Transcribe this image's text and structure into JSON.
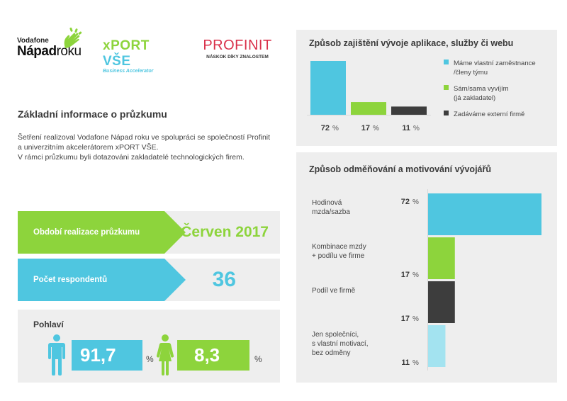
{
  "logos": {
    "vodafone_small": "Vodafone",
    "vodafone_big_bold": "Nápad",
    "vodafone_big_light": "roku",
    "xport_pre": "xPORT ",
    "xport_post": "VŠE",
    "xport_sub": "Business Accelerator",
    "profinit_main": "PROFINIT",
    "profinit_sub": "NÁSKOK DÍKY ZNALOSTEM"
  },
  "intro": {
    "title": "Základní informace o průzkumu",
    "line1": "Šetření realizoval Vodafone Nápad roku ve spolupráci se společností Profinit",
    "line2": "a univerzitním akcelerátorem xPORT VŠE.",
    "line3": "V rámci průzkumu byli dotazováni zakladatelé technologických firem."
  },
  "info": {
    "period_label": "Období realizace průzkumu",
    "period_value": "Červen 2017",
    "respondents_label": "Počet respondentů",
    "respondents_value": "36"
  },
  "gender": {
    "title": "Pohlaví",
    "male_value": "91,7",
    "female_value": "8,3",
    "unit": "%"
  },
  "colors": {
    "cyan": "#4fc6e0",
    "green": "#8dd43c",
    "dark": "#3d3d3d",
    "light_cyan": "#a3e3f0",
    "panel_bg": "#eeeeee"
  },
  "chart_data": [
    {
      "type": "bar",
      "title": "Způsob zajištění vývoje aplikace, služby či webu",
      "orientation": "vertical",
      "unit": "%",
      "series": [
        {
          "name": "Máme vlastní zaměstnance /členy týmu",
          "legend_lines": [
            "Máme vlastní zaměstnance",
            "/členy týmu"
          ],
          "value": 72,
          "color": "#4fc6e0"
        },
        {
          "name": "Sám/sama vyvíjím (já zakladatel)",
          "legend_lines": [
            "Sám/sama vyvíjím",
            "(já zakladatel)"
          ],
          "value": 17,
          "color": "#8dd43c"
        },
        {
          "name": "Zadáváme externí firmě",
          "legend_lines": [
            "Zadáváme externí firmě"
          ],
          "value": 11,
          "color": "#3d3d3d"
        }
      ],
      "legend": "right",
      "ylim": [
        0,
        72
      ]
    },
    {
      "type": "bar",
      "title": "Způsob odměňování a motivování vývojářů",
      "orientation": "horizontal",
      "unit": "%",
      "series": [
        {
          "label_lines": [
            "Hodinová",
            "mzda/sazba"
          ],
          "value": 72,
          "color": "#4fc6e0"
        },
        {
          "label_lines": [
            "Kombinace mzdy",
            "+ podílu ve firme"
          ],
          "value": 17,
          "color": "#8dd43c"
        },
        {
          "label_lines": [
            "Podíl ve firmě"
          ],
          "value": 17,
          "color": "#3d3d3d"
        },
        {
          "label_lines": [
            "Jen společníci,",
            "s vlastní motivací,",
            "bez odměny"
          ],
          "value": 11,
          "color": "#a3e3f0"
        }
      ],
      "xlim": [
        0,
        72
      ]
    }
  ]
}
